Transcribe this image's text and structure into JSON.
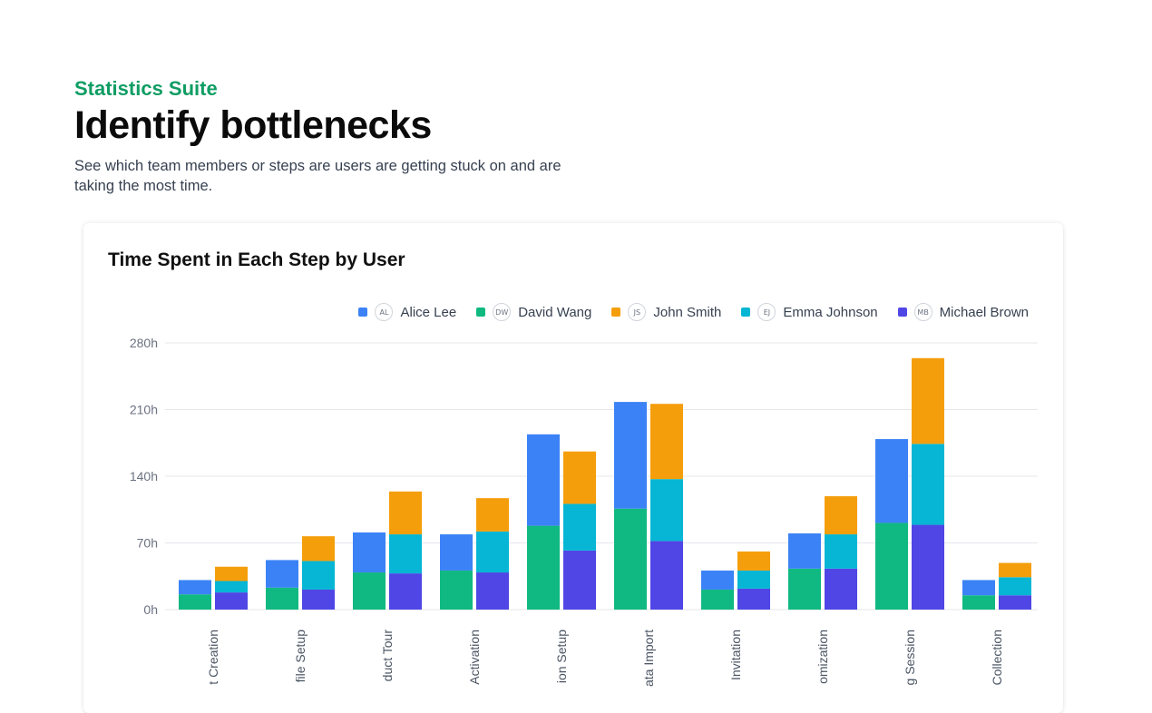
{
  "header": {
    "eyebrow": "Statistics Suite",
    "title": "Identify bottlenecks",
    "description": "See which team members or steps are users are getting stuck on and are taking the most time."
  },
  "card": {
    "title": "Time Spent in Each Step by User"
  },
  "legend": [
    {
      "name": "Alice Lee",
      "initials": "AL",
      "color": "#3b82f6"
    },
    {
      "name": "David Wang",
      "initials": "DW",
      "color": "#10b981"
    },
    {
      "name": "John Smith",
      "initials": "JS",
      "color": "#f59e0b"
    },
    {
      "name": "Emma Johnson",
      "initials": "EJ",
      "color": "#06b6d4"
    },
    {
      "name": "Michael Brown",
      "initials": "MB",
      "color": "#4f46e5"
    }
  ],
  "chart_data": {
    "type": "bar",
    "stacked": true,
    "title": "Time Spent in Each Step by User",
    "categories": [
      "t Creation",
      "file Setup",
      "duct Tour",
      "Activation",
      "ion Setup",
      "ata Import",
      "Invitation",
      "omization",
      "g Session",
      "Collection"
    ],
    "yticks": [
      "0h",
      "70h",
      "140h",
      "210h",
      "280h"
    ],
    "ylim": [
      0,
      280
    ],
    "grid": true,
    "legend_position": "top-right",
    "stacks": [
      {
        "segments": [
          {
            "series": "David Wang",
            "value": 16
          },
          {
            "series": "Alice Lee",
            "value": 15
          }
        ]
      },
      {
        "segments": [
          {
            "series": "Michael Brown",
            "value": 18
          },
          {
            "series": "Emma Johnson",
            "value": 12
          },
          {
            "series": "John Smith",
            "value": 15
          }
        ]
      }
    ],
    "groups": [
      {
        "left": {
          "David Wang": 16,
          "Alice Lee": 15
        },
        "right": {
          "Michael Brown": 18,
          "Emma Johnson": 12,
          "John Smith": 15
        }
      },
      {
        "left": {
          "David Wang": 23,
          "Alice Lee": 29
        },
        "right": {
          "Michael Brown": 21,
          "Emma Johnson": 30,
          "John Smith": 26
        }
      },
      {
        "left": {
          "David Wang": 39,
          "Alice Lee": 42
        },
        "right": {
          "Michael Brown": 38,
          "Emma Johnson": 41,
          "John Smith": 45
        }
      },
      {
        "left": {
          "David Wang": 41,
          "Alice Lee": 38
        },
        "right": {
          "Michael Brown": 39,
          "Emma Johnson": 43,
          "John Smith": 35
        }
      },
      {
        "left": {
          "David Wang": 88,
          "Alice Lee": 96
        },
        "right": {
          "Michael Brown": 62,
          "Emma Johnson": 49,
          "John Smith": 55
        }
      },
      {
        "left": {
          "David Wang": 106,
          "Alice Lee": 112
        },
        "right": {
          "Michael Brown": 72,
          "Emma Johnson": 65,
          "John Smith": 79
        }
      },
      {
        "left": {
          "David Wang": 21,
          "Alice Lee": 20
        },
        "right": {
          "Michael Brown": 22,
          "Emma Johnson": 19,
          "John Smith": 20
        }
      },
      {
        "left": {
          "David Wang": 43,
          "Alice Lee": 37
        },
        "right": {
          "Michael Brown": 43,
          "Emma Johnson": 36,
          "John Smith": 40
        }
      },
      {
        "left": {
          "David Wang": 91,
          "Alice Lee": 88
        },
        "right": {
          "Michael Brown": 89,
          "Emma Johnson": 85,
          "John Smith": 90
        }
      },
      {
        "left": {
          "David Wang": 15,
          "Alice Lee": 16
        },
        "right": {
          "Michael Brown": 15,
          "Emma Johnson": 19,
          "John Smith": 15
        }
      }
    ]
  }
}
